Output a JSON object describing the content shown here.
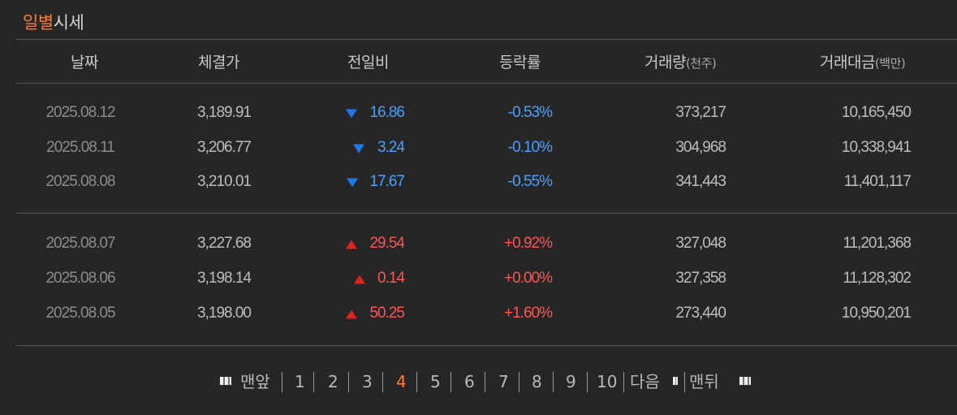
{
  "title": {
    "part1": "일별",
    "part2": "시세"
  },
  "headers": {
    "date": "날짜",
    "close": "체결가",
    "change": "전일비",
    "rate": "등락률",
    "volume": "거래량",
    "volume_unit": "(천주)",
    "amount": "거래대금",
    "amount_unit": "(백만)"
  },
  "rows": [
    {
      "date": "2025.08.12",
      "close": "3,189.91",
      "change": "16.86",
      "direction": "down",
      "rate": "-0.53%",
      "volume": "373,217",
      "amount": "10,165,450"
    },
    {
      "date": "2025.08.11",
      "close": "3,206.77",
      "change": "3.24",
      "direction": "down",
      "rate": "-0.10%",
      "volume": "304,968",
      "amount": "10,338,941"
    },
    {
      "date": "2025.08.08",
      "close": "3,210.01",
      "change": "17.67",
      "direction": "down",
      "rate": "-0.55%",
      "volume": "341,443",
      "amount": "11,401,117"
    },
    {
      "date": "2025.08.07",
      "close": "3,227.68",
      "change": "29.54",
      "direction": "up",
      "rate": "+0.92%",
      "volume": "327,048",
      "amount": "11,201,368"
    },
    {
      "date": "2025.08.06",
      "close": "3,198.14",
      "change": "0.14",
      "direction": "up",
      "rate": "+0.00%",
      "volume": "327,358",
      "amount": "11,128,302"
    },
    {
      "date": "2025.08.05",
      "close": "3,198.00",
      "change": "50.25",
      "direction": "up",
      "rate": "+1.60%",
      "volume": "273,440",
      "amount": "10,950,201"
    }
  ],
  "pagination": {
    "first_label": "맨앞",
    "pages": [
      "1",
      "2",
      "3",
      "4",
      "5",
      "6",
      "7",
      "8",
      "9",
      "10"
    ],
    "current_page": "4",
    "next_label": "다음",
    "last_label": "맨뒤"
  },
  "colors": {
    "accent": "#ff7c2e",
    "up": "#ff5454",
    "down": "#4aa0ff",
    "background": "#262626"
  }
}
